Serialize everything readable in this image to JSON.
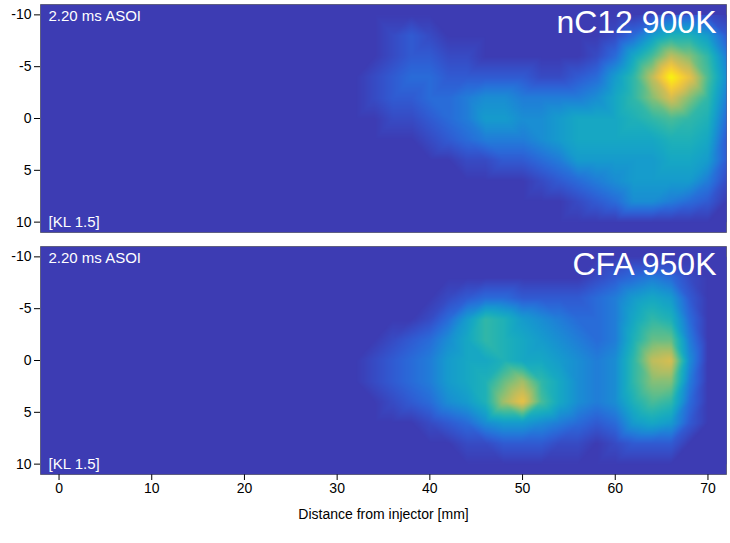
{
  "chart_data": [
    {
      "type": "heatmap",
      "title": "nC12 900K",
      "annotations": [
        "2.20 ms ASOI",
        "[KL 1.5]"
      ],
      "xlim": [
        -2,
        72
      ],
      "xticks": [
        0,
        10,
        20,
        30,
        40,
        50,
        60,
        70
      ],
      "ylim": [
        11,
        -11
      ],
      "yticks": [
        -10,
        -5,
        0,
        5,
        10
      ],
      "tick_labels": "y",
      "zlim": [
        0,
        1
      ],
      "cells": {
        "x": [
          28,
          30,
          32,
          34,
          36,
          38,
          40,
          42,
          44,
          46,
          48,
          50,
          52,
          54,
          56,
          58,
          60,
          62,
          64,
          66,
          68,
          70,
          72
        ],
        "y": [
          -10,
          -8,
          -6,
          -4,
          -2,
          0,
          2,
          4,
          6,
          8,
          10
        ],
        "values": [
          [
            0,
            0,
            0,
            0,
            0,
            0,
            0,
            0,
            0,
            0,
            0,
            0,
            0,
            0,
            0,
            0,
            0,
            0,
            0.05,
            0.1,
            0.1,
            0.05,
            0
          ],
          [
            0,
            0,
            0,
            0,
            0.05,
            0.1,
            0.05,
            0,
            0,
            0,
            0,
            0,
            0,
            0,
            0,
            0,
            0.05,
            0.15,
            0.3,
            0.4,
            0.4,
            0.3,
            0.1
          ],
          [
            0,
            0,
            0,
            0,
            0.05,
            0.1,
            0.1,
            0.05,
            0.05,
            0,
            0,
            0,
            0,
            0,
            0,
            0.05,
            0.15,
            0.35,
            0.5,
            0.7,
            0.6,
            0.45,
            0.2
          ],
          [
            0,
            0,
            0,
            0.05,
            0.1,
            0.15,
            0.15,
            0.1,
            0.1,
            0.1,
            0.1,
            0.1,
            0.05,
            0.05,
            0.1,
            0.15,
            0.3,
            0.45,
            0.7,
            1.0,
            0.8,
            0.5,
            0.25
          ],
          [
            0,
            0,
            0,
            0.05,
            0.1,
            0.1,
            0.15,
            0.15,
            0.2,
            0.25,
            0.25,
            0.2,
            0.2,
            0.2,
            0.2,
            0.25,
            0.35,
            0.45,
            0.6,
            0.75,
            0.6,
            0.45,
            0.2
          ],
          [
            0,
            0,
            0,
            0,
            0.05,
            0.05,
            0.1,
            0.15,
            0.2,
            0.3,
            0.3,
            0.25,
            0.25,
            0.3,
            0.35,
            0.35,
            0.35,
            0.4,
            0.45,
            0.5,
            0.45,
            0.4,
            0.15
          ],
          [
            0,
            0,
            0,
            0,
            0,
            0,
            0.05,
            0.1,
            0.15,
            0.2,
            0.2,
            0.2,
            0.25,
            0.3,
            0.35,
            0.35,
            0.35,
            0.35,
            0.35,
            0.4,
            0.4,
            0.35,
            0.1
          ],
          [
            0,
            0,
            0,
            0,
            0,
            0,
            0,
            0,
            0.05,
            0.05,
            0.1,
            0.1,
            0.15,
            0.2,
            0.3,
            0.3,
            0.3,
            0.3,
            0.3,
            0.35,
            0.35,
            0.3,
            0.1
          ],
          [
            0,
            0,
            0,
            0,
            0,
            0,
            0,
            0,
            0,
            0,
            0,
            0,
            0.05,
            0.1,
            0.15,
            0.2,
            0.25,
            0.3,
            0.3,
            0.3,
            0.3,
            0.2,
            0.05
          ],
          [
            0,
            0,
            0,
            0,
            0,
            0,
            0,
            0,
            0,
            0,
            0,
            0,
            0,
            0,
            0.05,
            0.1,
            0.15,
            0.25,
            0.25,
            0.2,
            0.15,
            0.1,
            0
          ],
          [
            0,
            0,
            0,
            0,
            0,
            0,
            0,
            0,
            0,
            0,
            0,
            0,
            0,
            0,
            0,
            0,
            0,
            0,
            0,
            0,
            0,
            0,
            0
          ]
        ]
      }
    },
    {
      "type": "heatmap",
      "title": "CFA 950K",
      "annotations": [
        "2.20 ms ASOI",
        "[KL 1.5]"
      ],
      "xlabel": "Distance from injector [mm]",
      "xlim": [
        -2,
        72
      ],
      "xticks": [
        0,
        10,
        20,
        30,
        40,
        50,
        60,
        70
      ],
      "ylim": [
        11,
        -11
      ],
      "yticks": [
        -10,
        -5,
        0,
        5,
        10
      ],
      "zlim": [
        0,
        1
      ],
      "cells": {
        "x": [
          28,
          30,
          32,
          34,
          36,
          38,
          40,
          42,
          44,
          46,
          48,
          50,
          52,
          54,
          56,
          58,
          60,
          62,
          64,
          66,
          68,
          70,
          72
        ],
        "y": [
          -10,
          -8,
          -6,
          -4,
          -2,
          0,
          2,
          4,
          6,
          8,
          10
        ],
        "values": [
          [
            0,
            0,
            0,
            0,
            0,
            0,
            0,
            0,
            0,
            0,
            0,
            0,
            0,
            0,
            0,
            0,
            0,
            0,
            0,
            0,
            0,
            0,
            0
          ],
          [
            0,
            0,
            0,
            0,
            0,
            0,
            0,
            0,
            0,
            0,
            0,
            0,
            0,
            0,
            0,
            0.05,
            0.1,
            0.15,
            0.2,
            0.15,
            0.05,
            0,
            0
          ],
          [
            0,
            0,
            0,
            0,
            0,
            0,
            0,
            0.05,
            0.1,
            0.15,
            0.15,
            0.1,
            0.1,
            0.1,
            0.1,
            0.15,
            0.2,
            0.3,
            0.35,
            0.3,
            0.1,
            0,
            0
          ],
          [
            0,
            0,
            0,
            0,
            0,
            0,
            0.05,
            0.15,
            0.3,
            0.45,
            0.4,
            0.3,
            0.25,
            0.2,
            0.15,
            0.15,
            0.2,
            0.35,
            0.45,
            0.4,
            0.15,
            0,
            0
          ],
          [
            0,
            0,
            0,
            0,
            0.05,
            0.1,
            0.15,
            0.25,
            0.35,
            0.45,
            0.4,
            0.35,
            0.3,
            0.25,
            0.2,
            0.15,
            0.2,
            0.4,
            0.55,
            0.55,
            0.2,
            0,
            0
          ],
          [
            0,
            0,
            0,
            0.05,
            0.1,
            0.15,
            0.2,
            0.3,
            0.35,
            0.35,
            0.4,
            0.35,
            0.35,
            0.3,
            0.25,
            0.2,
            0.25,
            0.45,
            0.7,
            0.75,
            0.25,
            0,
            0
          ],
          [
            0,
            0,
            0,
            0.05,
            0.1,
            0.15,
            0.2,
            0.3,
            0.35,
            0.4,
            0.55,
            0.65,
            0.45,
            0.35,
            0.25,
            0.2,
            0.25,
            0.45,
            0.6,
            0.6,
            0.2,
            0,
            0
          ],
          [
            0,
            0,
            0,
            0,
            0.05,
            0.1,
            0.15,
            0.25,
            0.3,
            0.4,
            0.65,
            0.8,
            0.5,
            0.35,
            0.25,
            0.2,
            0.25,
            0.4,
            0.5,
            0.45,
            0.15,
            0,
            0
          ],
          [
            0,
            0,
            0,
            0,
            0,
            0,
            0.05,
            0.1,
            0.15,
            0.25,
            0.3,
            0.3,
            0.25,
            0.2,
            0.15,
            0.1,
            0.15,
            0.3,
            0.35,
            0.3,
            0.1,
            0,
            0
          ],
          [
            0,
            0,
            0,
            0,
            0,
            0,
            0,
            0,
            0.05,
            0.05,
            0.1,
            0.1,
            0.1,
            0.05,
            0.05,
            0,
            0.05,
            0.1,
            0.1,
            0.1,
            0,
            0,
            0
          ],
          [
            0,
            0,
            0,
            0,
            0,
            0,
            0,
            0,
            0,
            0,
            0,
            0,
            0,
            0,
            0,
            0,
            0,
            0,
            0,
            0,
            0,
            0,
            0
          ]
        ]
      }
    }
  ]
}
